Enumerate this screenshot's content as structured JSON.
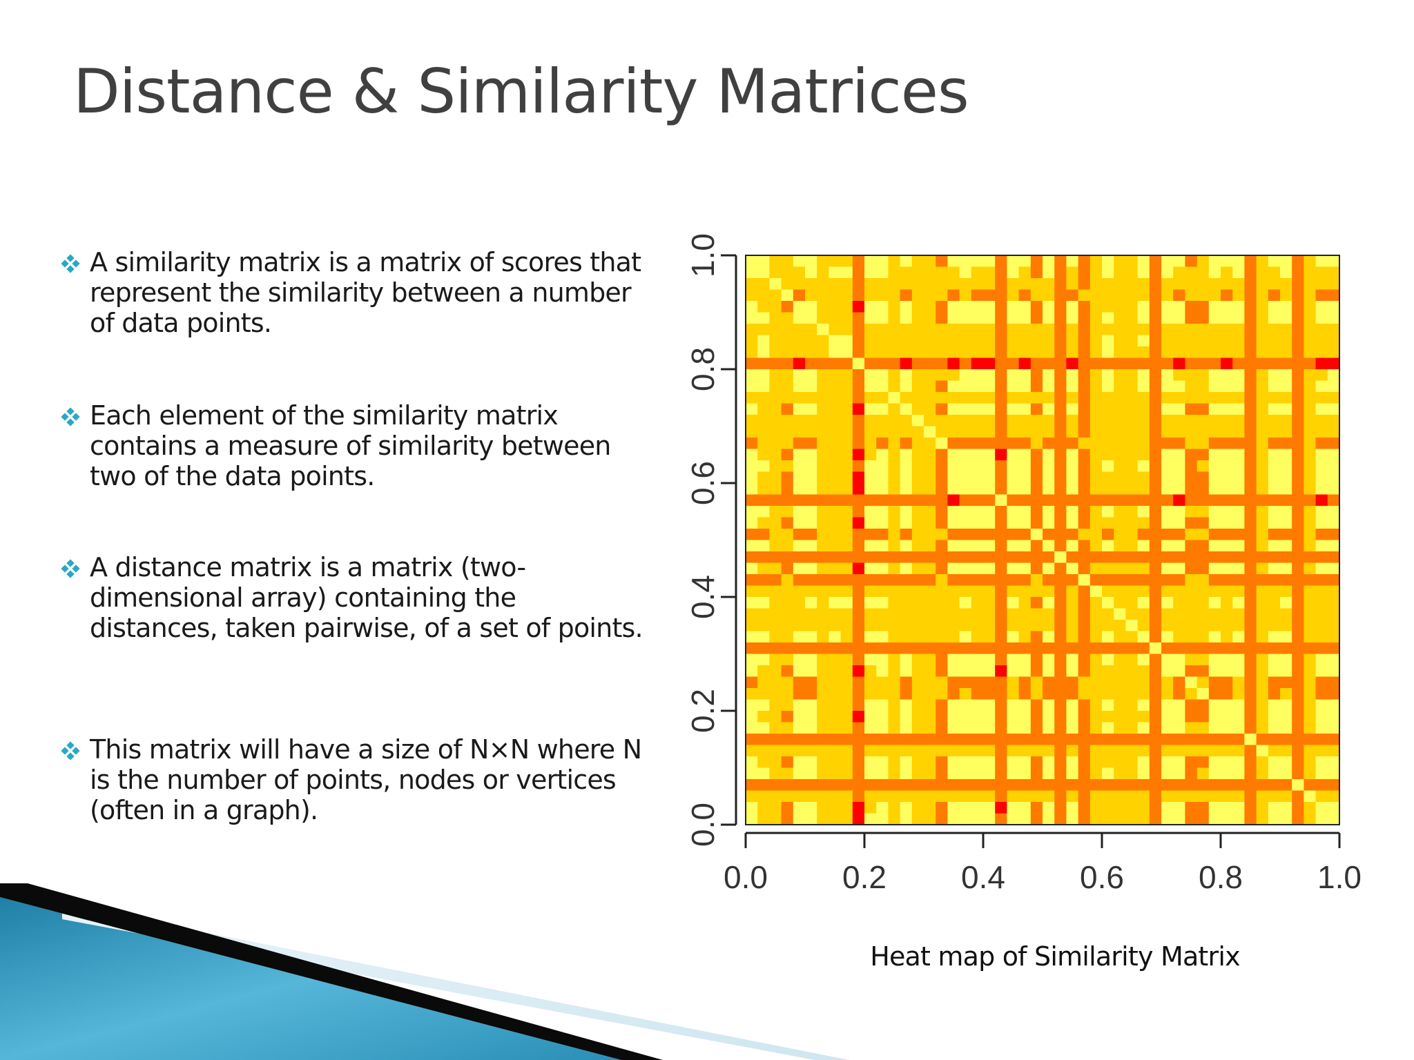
{
  "slide": {
    "title": "Distance & Similarity Matrices",
    "bullets": [
      {
        "text": "A similarity matrix is a matrix of scores that represent the similarity between a number of data points."
      },
      {
        "text": "Each element of the similarity matrix contains a measure of similarity between two of the data points."
      },
      {
        "text": "A distance matrix is a matrix (two-dimensional array) containing the distances, taken pairwise, of a set of points."
      },
      {
        "text": "This matrix will have a size of N×N where N is the number of points, nodes or vertices (often in a graph)."
      }
    ],
    "bullet_icon": "diamond-cluster-icon",
    "bullet_color": "#2aa8c4",
    "caption": "Heat map of Similarity Matrix"
  },
  "chart_data": {
    "type": "heatmap",
    "title": "",
    "xlabel": "",
    "ylabel": "",
    "xlim": [
      0,
      1
    ],
    "ylim": [
      0,
      1
    ],
    "x_ticks": [
      "0.0",
      "0.2",
      "0.4",
      "0.6",
      "0.8",
      "1.0"
    ],
    "y_ticks": [
      "0.0",
      "0.2",
      "0.4",
      "0.6",
      "0.8",
      "1.0"
    ],
    "grid": false,
    "legend": "none",
    "color_scale": [
      "#ff0000",
      "#ff7a00",
      "#ffd200",
      "#ffff60"
    ],
    "grid_size": 50,
    "symmetric": true
  }
}
